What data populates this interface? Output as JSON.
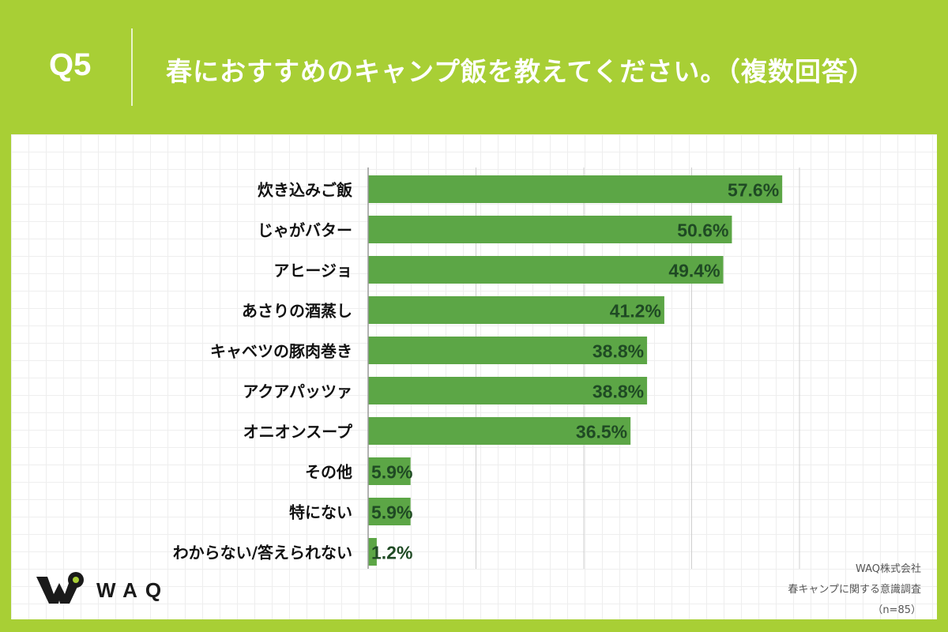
{
  "header": {
    "question_number": "Q5",
    "title": "春におすすめのキャンプ飯を教えてください。（複数回答）"
  },
  "chart_data": {
    "type": "bar",
    "orientation": "horizontal",
    "title": "春におすすめのキャンプ飯を教えてください。（複数回答）",
    "categories": [
      "炊き込みご飯",
      "じゃがバター",
      "アヒージョ",
      "あさりの酒蒸し",
      "キャベツの豚肉巻き",
      "アクアパッツァ",
      "オニオンスープ",
      "その他",
      "特にない",
      "わからない/答えられない"
    ],
    "values": [
      57.6,
      50.6,
      49.4,
      41.2,
      38.8,
      38.8,
      36.5,
      5.9,
      5.9,
      1.2
    ],
    "labels": [
      "57.6%",
      "50.6%",
      "49.4%",
      "41.2%",
      "38.8%",
      "38.8%",
      "36.5%",
      "5.9%",
      "5.9%",
      "1.2%"
    ],
    "unit": "%",
    "xlim": [
      0,
      60
    ],
    "xgrid_step": 15,
    "grid": true,
    "xlabel": "",
    "ylabel": ""
  },
  "colors": {
    "background": "#a8cf35",
    "bar": "#5ca646",
    "value_label": "#1f4a24",
    "category_label": "#111111"
  },
  "logo": {
    "text": "WAQ"
  },
  "credit": {
    "company": "WAQ株式会社",
    "survey": "春キャンプに関する意識調査",
    "sample": "（n=85）"
  }
}
